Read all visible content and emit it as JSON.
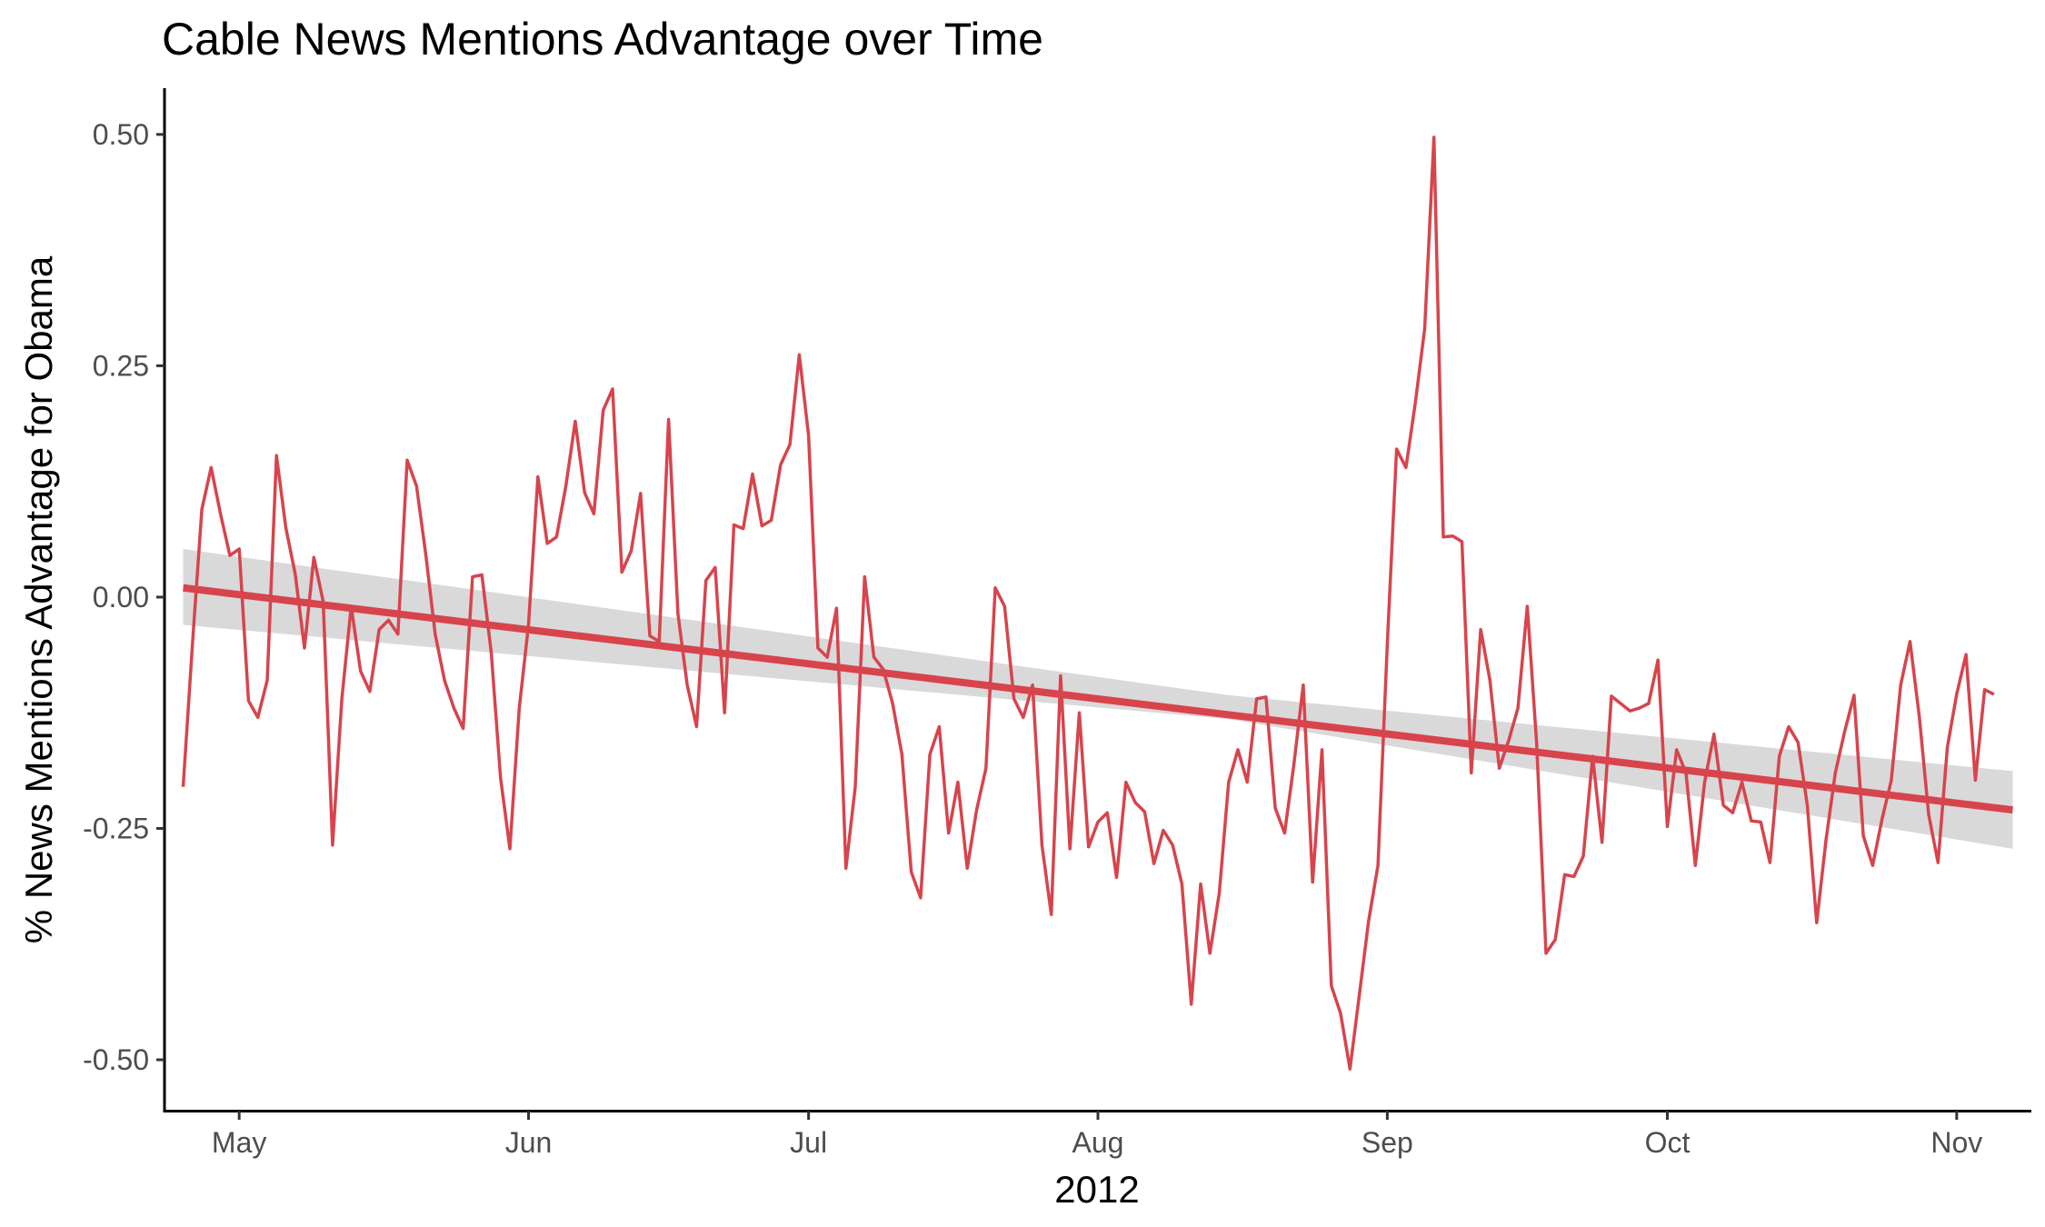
{
  "chart_data": {
    "type": "line",
    "title": "Cable News Mentions Advantage over Time",
    "xlabel": "2012",
    "ylabel": "% News Mentions Advantage for Obama",
    "xlim": [
      "2012-04-23",
      "2012-11-09"
    ],
    "ylim": [
      -0.555,
      0.55
    ],
    "x_ticks": [
      {
        "date": "2012-05-01",
        "label": "May"
      },
      {
        "date": "2012-06-01",
        "label": "Jun"
      },
      {
        "date": "2012-07-01",
        "label": "Jul"
      },
      {
        "date": "2012-08-01",
        "label": "Aug"
      },
      {
        "date": "2012-09-01",
        "label": "Sep"
      },
      {
        "date": "2012-10-01",
        "label": "Oct"
      },
      {
        "date": "2012-11-01",
        "label": "Nov"
      }
    ],
    "y_ticks": [
      {
        "value": 0.5,
        "label": "0.50"
      },
      {
        "value": 0.25,
        "label": "0.25"
      },
      {
        "value": 0.0,
        "label": "0.00"
      },
      {
        "value": -0.25,
        "label": "-0.25"
      },
      {
        "value": -0.5,
        "label": "-0.50"
      }
    ],
    "grid": false,
    "colors": {
      "series": "#d7444c",
      "band": "#d9d9d9",
      "axis": "#000000",
      "tick_text": "#4d4d4d"
    },
    "series": [
      {
        "type": "line",
        "start_date": "2012-04-25",
        "values": [
          -0.205,
          -0.05,
          0.095,
          0.14,
          0.09,
          0.045,
          0.052,
          -0.112,
          -0.13,
          -0.09,
          0.153,
          0.075,
          0.025,
          -0.055,
          0.043,
          -0.005,
          -0.268,
          -0.11,
          -0.01,
          -0.08,
          -0.102,
          -0.035,
          -0.025,
          -0.04,
          0.148,
          0.12,
          0.045,
          -0.04,
          -0.09,
          -0.12,
          -0.142,
          0.022,
          0.024,
          -0.06,
          -0.195,
          -0.272,
          -0.12,
          -0.03,
          0.13,
          0.058,
          0.065,
          0.12,
          0.19,
          0.113,
          0.09,
          0.202,
          0.225,
          0.027,
          0.05,
          0.112,
          -0.042,
          -0.048,
          0.192,
          -0.018,
          -0.095,
          -0.14,
          0.018,
          0.032,
          -0.125,
          0.078,
          0.074,
          0.133,
          0.077,
          0.083,
          0.143,
          0.165,
          0.262,
          0.175,
          -0.055,
          -0.065,
          -0.012,
          -0.293,
          -0.205,
          0.022,
          -0.065,
          -0.078,
          -0.115,
          -0.17,
          -0.297,
          -0.325,
          -0.17,
          -0.14,
          -0.255,
          -0.2,
          -0.293,
          -0.23,
          -0.185,
          0.01,
          -0.01,
          -0.11,
          -0.13,
          -0.095,
          -0.268,
          -0.343,
          -0.085,
          -0.272,
          -0.125,
          -0.27,
          -0.243,
          -0.233,
          -0.303,
          -0.2,
          -0.222,
          -0.232,
          -0.288,
          -0.252,
          -0.268,
          -0.31,
          -0.44,
          -0.31,
          -0.385,
          -0.32,
          -0.2,
          -0.165,
          -0.2,
          -0.11,
          -0.108,
          -0.228,
          -0.255,
          -0.18,
          -0.095,
          -0.308,
          -0.165,
          -0.42,
          -0.45,
          -0.51,
          -0.43,
          -0.35,
          -0.29,
          -0.05,
          0.16,
          0.14,
          0.21,
          0.29,
          0.497,
          0.065,
          0.066,
          0.06,
          -0.19,
          -0.035,
          -0.09,
          -0.185,
          -0.155,
          -0.12,
          -0.01,
          -0.158,
          -0.385,
          -0.37,
          -0.3,
          -0.302,
          -0.28,
          -0.172,
          -0.265,
          -0.107,
          -0.115,
          -0.123,
          -0.12,
          -0.115,
          -0.068,
          -0.248,
          -0.165,
          -0.19,
          -0.29,
          -0.2,
          -0.148,
          -0.225,
          -0.233,
          -0.2,
          -0.242,
          -0.243,
          -0.287,
          -0.172,
          -0.14,
          -0.157,
          -0.225,
          -0.352,
          -0.262,
          -0.19,
          -0.145,
          -0.106,
          -0.258,
          -0.29,
          -0.24,
          -0.198,
          -0.095,
          -0.048,
          -0.13,
          -0.235,
          -0.287,
          -0.162,
          -0.105,
          -0.062,
          -0.198,
          -0.1,
          -0.105
        ]
      },
      {
        "type": "linear-fit",
        "start": {
          "date": "2012-04-25",
          "value": 0.01
        },
        "end": {
          "date": "2012-11-07",
          "value": -0.23
        },
        "confidence_band": {
          "start": [
            -0.03,
            0.052
          ],
          "mid": {
            "date": "2012-08-15",
            "range": [
              -0.132,
              -0.106
            ]
          },
          "end": [
            -0.272,
            -0.188
          ]
        }
      }
    ]
  }
}
